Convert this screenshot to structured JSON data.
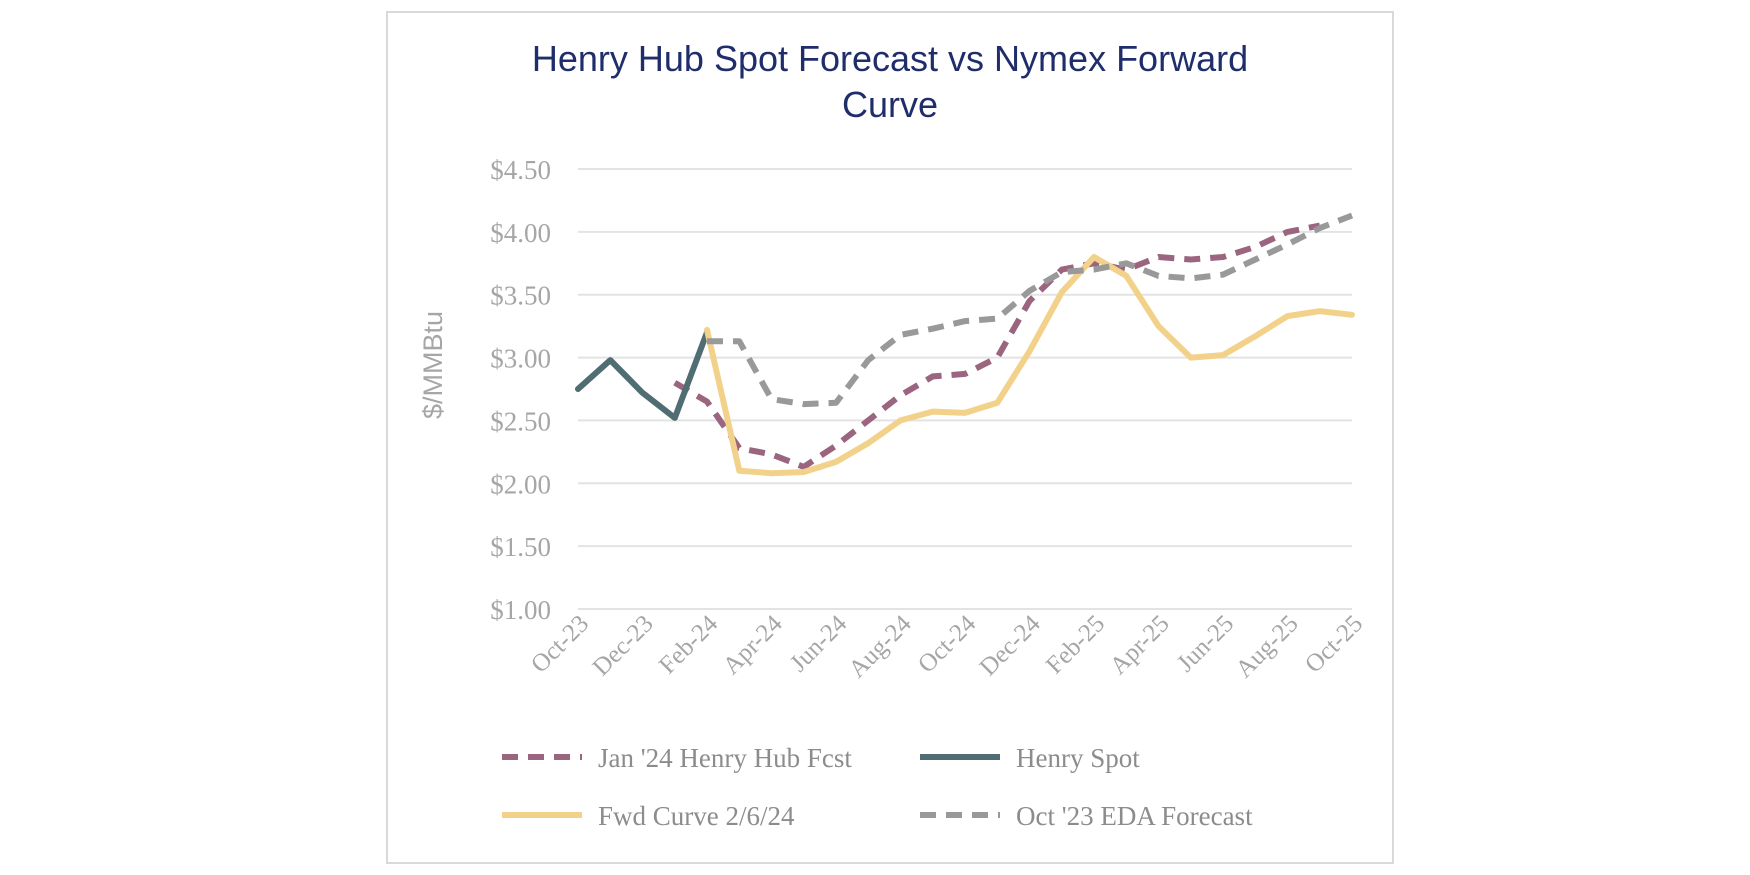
{
  "chart_data": {
    "type": "line",
    "title_line1": "Henry Hub Spot Forecast vs Nymex Forward",
    "title_line2": "Curve",
    "ylabel": "$/MMBtu",
    "ylim": [
      1.0,
      4.5
    ],
    "yticks": [
      1.0,
      1.5,
      2.0,
      2.5,
      3.0,
      3.5,
      4.0,
      4.5
    ],
    "ytick_labels": [
      "$1.00",
      "$1.50",
      "$2.00",
      "$2.50",
      "$3.00",
      "$3.50",
      "$4.00",
      "$4.50"
    ],
    "x": [
      "Oct-23",
      "Nov-23",
      "Dec-23",
      "Jan-24",
      "Feb-24",
      "Mar-24",
      "Apr-24",
      "May-24",
      "Jun-24",
      "Jul-24",
      "Aug-24",
      "Sep-24",
      "Oct-24",
      "Nov-24",
      "Dec-24",
      "Jan-25",
      "Feb-25",
      "Mar-25",
      "Apr-25",
      "May-25",
      "Jun-25",
      "Jul-25",
      "Aug-25",
      "Sep-25",
      "Oct-25"
    ],
    "xtick_labels": [
      "Oct-23",
      "Dec-23",
      "Feb-24",
      "Apr-24",
      "Jun-24",
      "Aug-24",
      "Oct-24",
      "Dec-24",
      "Feb-25",
      "Apr-25",
      "Jun-25",
      "Aug-25",
      "Oct-25"
    ],
    "grid": true,
    "legend_position": "bottom",
    "series": [
      {
        "name": "Jan '24 Henry Hub Fcst",
        "color": "#9b6580",
        "dash": "dashed",
        "values": [
          null,
          null,
          null,
          2.8,
          2.65,
          2.28,
          2.23,
          2.13,
          2.3,
          2.5,
          2.7,
          2.85,
          2.87,
          3.0,
          3.45,
          3.7,
          3.75,
          3.7,
          3.8,
          3.78,
          3.8,
          3.88,
          4.0,
          4.05,
          null
        ]
      },
      {
        "name": "Henry Spot",
        "color": "#4f6d73",
        "dash": "solid",
        "values": [
          2.75,
          2.98,
          2.72,
          2.52,
          3.2,
          null,
          null,
          null,
          null,
          null,
          null,
          null,
          null,
          null,
          null,
          null,
          null,
          null,
          null,
          null,
          null,
          null,
          null,
          null,
          null
        ]
      },
      {
        "name": "Fwd Curve 2/6/24",
        "color": "#f2d28a",
        "dash": "solid",
        "values": [
          null,
          null,
          null,
          null,
          3.22,
          2.1,
          2.08,
          2.09,
          2.17,
          2.32,
          2.5,
          2.57,
          2.56,
          2.64,
          3.05,
          3.52,
          3.8,
          3.65,
          3.25,
          3.0,
          3.02,
          3.17,
          3.33,
          3.37,
          3.34
        ]
      },
      {
        "name": "Oct '23 EDA Forecast",
        "color": "#999999",
        "dash": "dashed",
        "values": [
          null,
          null,
          null,
          null,
          3.13,
          3.13,
          2.67,
          2.63,
          2.64,
          2.98,
          3.18,
          3.23,
          3.29,
          3.31,
          3.53,
          3.68,
          3.7,
          3.75,
          3.65,
          3.63,
          3.66,
          3.78,
          3.9,
          4.03,
          4.13
        ]
      }
    ]
  }
}
